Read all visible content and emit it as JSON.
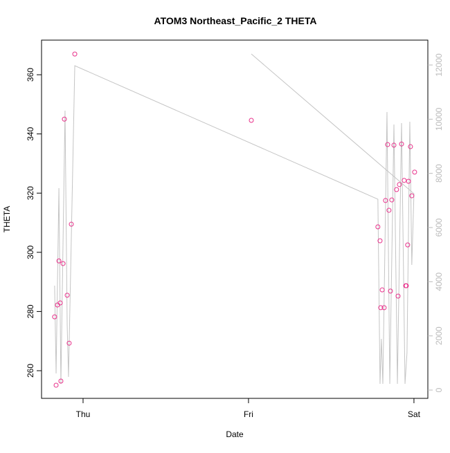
{
  "chart_data": {
    "type": "scatter",
    "title": "ATOM3 Northeast_Pacific_2 THETA",
    "xlabel": "Date",
    "ylabel": "THETA",
    "x": [
      -0.172,
      -0.163,
      -0.155,
      -0.146,
      -0.138,
      -0.134,
      -0.121,
      -0.113,
      -0.096,
      -0.084,
      -0.071,
      -0.05,
      1.017,
      1.782,
      1.795,
      1.799,
      1.808,
      1.82,
      1.828,
      1.841,
      1.849,
      1.858,
      1.866,
      1.879,
      1.895,
      1.904,
      1.912,
      1.925,
      1.941,
      1.95,
      1.954,
      1.962,
      1.967,
      1.979,
      1.987,
      2.004
    ],
    "values": [
      278.2,
      255.1,
      282.2,
      297.1,
      282.9,
      256.5,
      296.2,
      345.0,
      285.5,
      269.3,
      309.5,
      367.0,
      344.6,
      308.6,
      303.9,
      281.3,
      287.3,
      281.3,
      317.5,
      336.4,
      314.2,
      286.9,
      317.7,
      336.2,
      321.2,
      285.2,
      322.9,
      336.6,
      324.3,
      288.7,
      288.7,
      302.5,
      324.0,
      335.7,
      319.1,
      327.1
    ],
    "color": "#e8308a",
    "line": {
      "axis": "y2",
      "color": "#c4c4c4",
      "x": [
        -0.172,
        -0.163,
        -0.146,
        -0.134,
        -0.109,
        -0.096,
        -0.088,
        -0.05,
        1.782,
        1.795,
        1.803,
        1.812,
        1.837,
        1.854,
        1.879,
        1.9,
        1.925,
        1.946,
        1.958,
        1.975,
        1.987,
        2.0,
        1.017
      ],
      "values": [
        3855,
        613,
        7455,
        230,
        10314,
        2400,
        485,
        11974,
        7046,
        230,
        1889,
        230,
        10263,
        230,
        9803,
        230,
        9855,
        230,
        1379,
        9906,
        4621,
        7250,
        12408
      ]
    },
    "xlim": [
      -0.251,
      2.084
    ],
    "xticks": [
      {
        "value": 0,
        "label": "Thu"
      },
      {
        "value": 1,
        "label": "Fri"
      },
      {
        "value": 2,
        "label": "Sat"
      }
    ],
    "ylim": [
      250.65,
      371.7
    ],
    "yticks": [
      260,
      280,
      300,
      320,
      340,
      360
    ],
    "y2lim": [
      -306,
      12919
    ],
    "y2ticks": [
      0,
      2000,
      4000,
      6000,
      8000,
      10000,
      12000
    ]
  }
}
